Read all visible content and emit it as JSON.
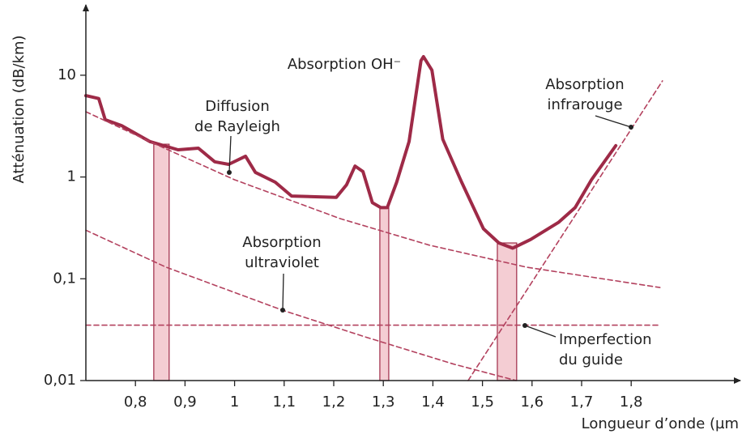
{
  "chart_data": {
    "type": "line",
    "xlabel": "Longueur d’onde (µm",
    "ylabel": "Atténuation (dB/km)",
    "xlim": [
      0.7,
      2.0
    ],
    "ylim": [
      0.01,
      40
    ],
    "ylog": true,
    "xticks": [
      {
        "value": 0.8,
        "label": "0,8"
      },
      {
        "value": 0.9,
        "label": "0,9"
      },
      1,
      {
        "value": 1.1,
        "label": "1,1"
      },
      {
        "value": 1.2,
        "label": "1,2"
      },
      {
        "value": 1.3,
        "label": "1,3"
      },
      {
        "value": 1.4,
        "label": "1,4"
      },
      {
        "value": 1.5,
        "label": "1,5"
      },
      {
        "value": 1.6,
        "label": "1,6"
      },
      {
        "value": 1.7,
        "label": "1,7"
      },
      {
        "value": 1.8,
        "label": "1,8"
      }
    ],
    "yticks": [
      {
        "value": 0.01,
        "label": "0,01"
      },
      {
        "value": 0.1,
        "label": "0,1"
      },
      1,
      10
    ],
    "series": [
      {
        "color": "#9e2a47",
        "dashed": false,
        "x": [
          0.7,
          0.726,
          0.739,
          0.772,
          0.829,
          0.886,
          0.927,
          0.96,
          0.988,
          1.022,
          1.042,
          1.082,
          1.115,
          1.205,
          1.226,
          1.243,
          1.259,
          1.278,
          1.295,
          1.308,
          1.327,
          1.352,
          1.376,
          1.381,
          1.398,
          1.42,
          1.458,
          1.502,
          1.533,
          1.561,
          1.597,
          1.654,
          1.687,
          1.72,
          1.769
        ],
        "values": [
          6.3,
          5.9,
          3.65,
          3.2,
          2.23,
          1.85,
          1.92,
          1.41,
          1.33,
          1.6,
          1.11,
          0.89,
          0.65,
          0.63,
          0.84,
          1.28,
          1.13,
          0.56,
          0.5,
          0.5,
          0.89,
          2.23,
          13.9,
          15.2,
          11.2,
          2.35,
          0.89,
          0.31,
          0.225,
          0.2,
          0.243,
          0.36,
          0.5,
          0.94,
          2.03
        ]
      },
      {
        "color": "#b3415e",
        "dashed": true,
        "x": [
          0.7,
          0.829,
          1.0,
          1.213,
          1.393,
          1.589,
          1.858
        ],
        "values": [
          4.38,
          2.23,
          0.94,
          0.39,
          0.214,
          0.13,
          0.082
        ]
      },
      {
        "color": "#b3415e",
        "dashed": true,
        "x": [
          0.7,
          0.862,
          1.097,
          1.262,
          1.442,
          1.568
        ],
        "values": [
          0.3,
          0.13,
          0.049,
          0.027,
          0.0145,
          0.01
        ]
      },
      {
        "color": "#b3415e",
        "dashed": true,
        "x": [
          1.471,
          1.863
        ],
        "values": [
          0.01,
          8.8
        ]
      },
      {
        "color": "#b3415e",
        "dashed": true,
        "x": [
          0.7,
          1.86
        ],
        "values": [
          0.035,
          0.035
        ]
      }
    ],
    "bands": [
      {
        "x": [
          0.837,
          0.868
        ],
        "top": 2.1
      },
      {
        "x": [
          1.293,
          1.311
        ],
        "top": 0.5
      },
      {
        "x": [
          1.53,
          1.569
        ],
        "top": 0.225
      }
    ],
    "band_color": "#f4cdd3",
    "annotations": [
      {
        "lines": [
          "Diffusion",
          "de Rayleigh"
        ]
      },
      {
        "lines": [
          "Absorption OH⁻"
        ]
      },
      {
        "lines": [
          "Absorption",
          "infrarouge"
        ]
      },
      {
        "lines": [
          "Absorption",
          "ultraviolet"
        ]
      },
      {
        "lines": [
          "Imperfection",
          "du guide"
        ]
      }
    ]
  }
}
